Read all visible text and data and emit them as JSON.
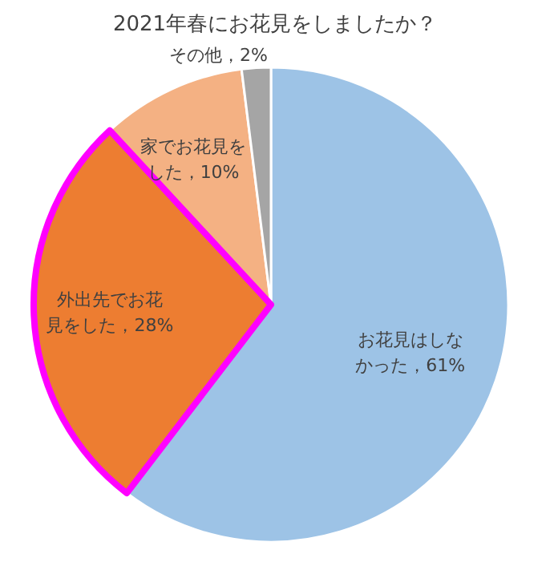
{
  "chart_data": {
    "type": "pie",
    "title": "2021年春にお花見をしましたか？",
    "categories": [
      "お花見はしなかった",
      "外出先でお花見をした",
      "家でお花見をした",
      "その他"
    ],
    "values": [
      61,
      28,
      10,
      2
    ],
    "value_labels": [
      "61%",
      "28%",
      "10%",
      "2%"
    ],
    "colors": [
      "#9dc3e6",
      "#ed7d31",
      "#f4b183",
      "#a5a5a5"
    ],
    "legend": false
  }
}
